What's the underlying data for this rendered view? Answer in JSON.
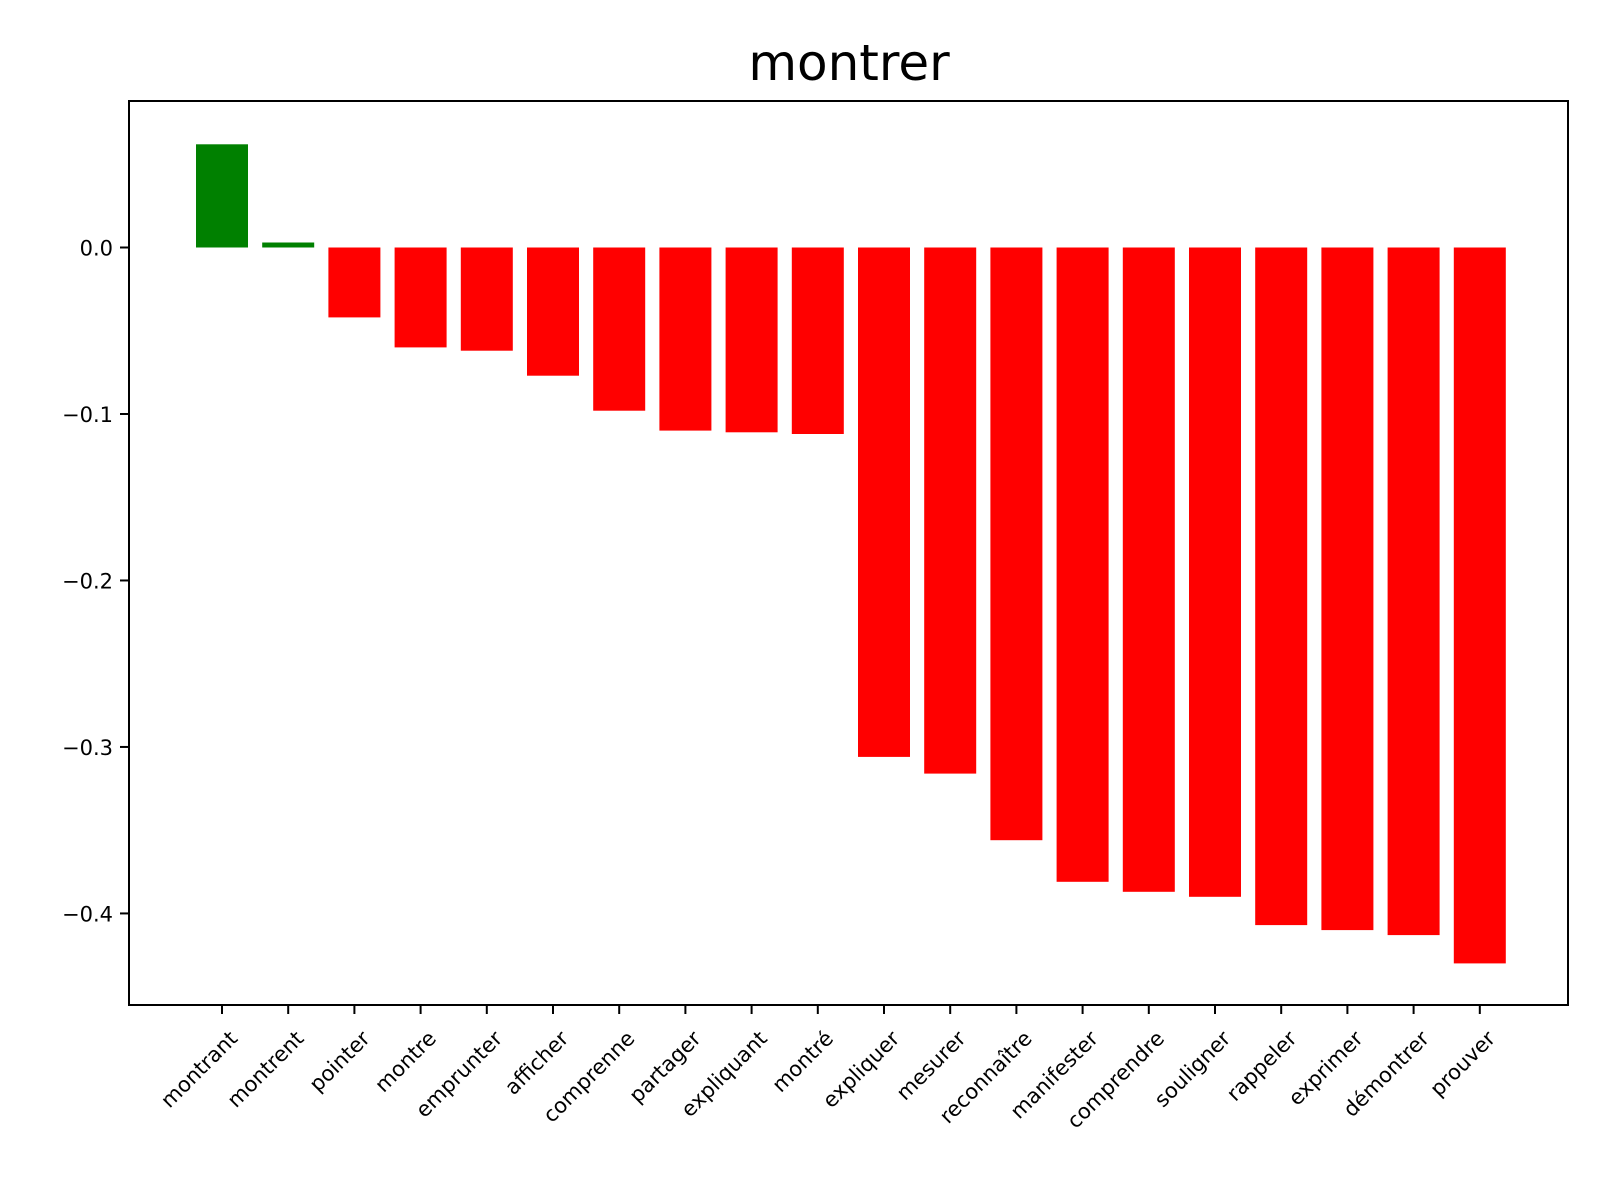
{
  "chart_data": {
    "type": "bar",
    "title": "montrer",
    "xlabel": "",
    "ylabel": "",
    "categories": [
      "montrant",
      "montrent",
      "pointer",
      "montre",
      "emprunter",
      "afficher",
      "comprenne",
      "partager",
      "expliquant",
      "montré",
      "expliquer",
      "mesurer",
      "reconnaître",
      "manifester",
      "comprendre",
      "souligner",
      "rappeler",
      "exprimer",
      "démontrer",
      "prouver"
    ],
    "values": [
      0.062,
      0.003,
      -0.042,
      -0.06,
      -0.062,
      -0.077,
      -0.098,
      -0.11,
      -0.111,
      -0.112,
      -0.306,
      -0.316,
      -0.356,
      -0.381,
      -0.387,
      -0.39,
      -0.407,
      -0.41,
      -0.413,
      -0.43
    ],
    "ylim": [
      -0.455,
      0.088
    ],
    "yticks": [
      0.0,
      -0.1,
      -0.2,
      -0.3,
      -0.4
    ],
    "ytick_labels": [
      "0.0",
      "−0.1",
      "−0.2",
      "−0.3",
      "−0.4"
    ],
    "positive_color": "#008000",
    "negative_color": "#ff0000",
    "grid": false,
    "legend": "none"
  }
}
